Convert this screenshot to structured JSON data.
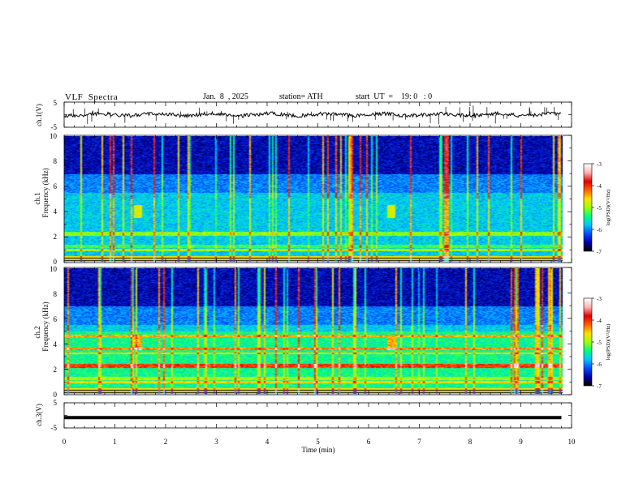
{
  "header": {
    "title": "VLF  Spectra",
    "date": "Jan.  8  , 2025",
    "station": "station= ATH",
    "start": "start  UT  =    19: 0   : 0"
  },
  "chart_data": [
    {
      "type": "line",
      "panel": "ch1-waveform",
      "ylabel": "ch.1(V)",
      "yticks": [
        "5",
        "-5"
      ],
      "ylim": [
        -5,
        5
      ],
      "series": [
        {
          "values_description_level": 0,
          "noise_amplitude": 1.2,
          "color": "#000000"
        }
      ]
    },
    {
      "type": "heatmap",
      "panel": "ch1-spectrogram",
      "ylabel": "ch.1\nFrequency  (kHz)",
      "ylabel_line1": "ch.1",
      "ylabel_line2": "Frequency  (kHz)",
      "yticks": [
        "0",
        "2",
        "4",
        "6",
        "8",
        "10"
      ],
      "ylim": [
        0,
        10
      ],
      "colorbar": {
        "label": "log(PSD)(V²/Hz)",
        "ticks": [
          "-3",
          "-4",
          "-5",
          "-6",
          "-7"
        ],
        "range": [
          -7,
          -3
        ]
      }
    },
    {
      "type": "heatmap",
      "panel": "ch2-spectrogram",
      "ylabel_line1": "ch.2",
      "ylabel_line2": "Frequency  (kHz)",
      "yticks": [
        "0",
        "2",
        "4",
        "6",
        "8",
        "10"
      ],
      "ylim": [
        0,
        10
      ],
      "colorbar": {
        "label": "log(PSD)(V²/Hz)",
        "ticks": [
          "-3",
          "-4",
          "-5",
          "-6",
          "-7"
        ],
        "range": [
          -7,
          -3
        ]
      }
    },
    {
      "type": "line",
      "panel": "ch3-waveform",
      "ylabel": "ch.3(V)",
      "yticks": [
        "5",
        "-5"
      ],
      "ylim": [
        -5,
        5
      ],
      "series": [
        {
          "level": -1.5,
          "color": "#000000"
        }
      ]
    }
  ],
  "xaxis": {
    "label": "Time  (min)",
    "ticks": [
      "0",
      "1",
      "2",
      "3",
      "4",
      "5",
      "6",
      "7",
      "8",
      "9",
      "10"
    ],
    "xlim": [
      0,
      10
    ],
    "data_end": 9.8
  },
  "colors": {
    "scale": [
      "#000000",
      "#0000b0",
      "#0050ff",
      "#00c8ff",
      "#00ff80",
      "#a0ff00",
      "#ffe000",
      "#ff6000",
      "#e00000",
      "#ffb0b0",
      "#ffffff"
    ]
  }
}
